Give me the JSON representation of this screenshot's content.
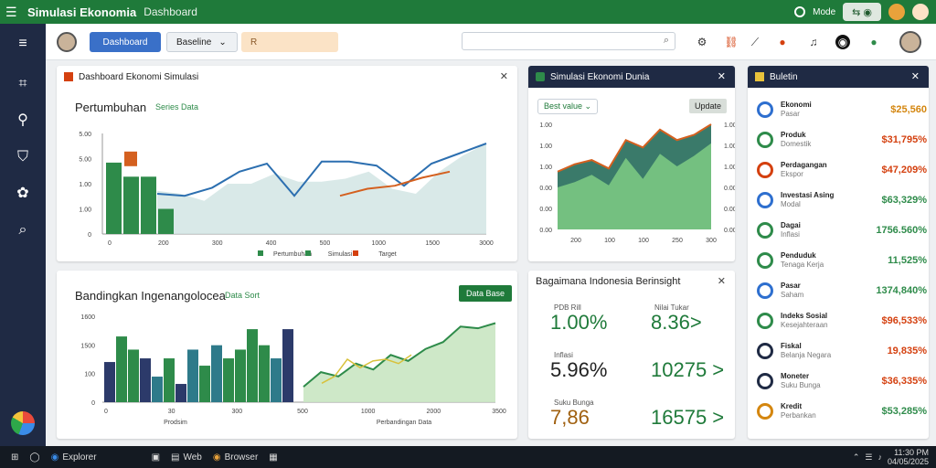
{
  "titlebar": {
    "app_title": "Simulasi Ekonomia",
    "subtitle": "Dashboard",
    "pill_label": "Mode"
  },
  "topbar": {
    "blue_button": "Dashboard",
    "select_label": "Baseline",
    "peach_label": "R",
    "search_placeholder": ""
  },
  "card1": {
    "header": "Dashboard Ekonomi Simulasi",
    "chart_title": "Pertumbuhan",
    "legend_inline": "Series Data",
    "chart_data": {
      "type": "line",
      "x_ticks": [
        "0",
        "200",
        "300",
        "400",
        "500",
        "1000",
        "1500",
        "3000"
      ],
      "y_ticks": [
        "5.00",
        "5.00",
        "1.00",
        "1.00",
        "0"
      ],
      "legend": [
        "Pertumbuhan",
        "Simulasi",
        "Target"
      ],
      "bars": [
        0.71,
        0.57,
        0.57,
        0.25
      ],
      "bar_colors": [
        "#2e8b4a",
        "#2e8b4a",
        "#2e8b4a",
        "#2e8b4a"
      ],
      "orange_bar": 0.82,
      "area_series": [
        0.43,
        0.4,
        0.33,
        0.5,
        0.5,
        0.6,
        0.52,
        0.52,
        0.55,
        0.62,
        0.45,
        0.4,
        0.62,
        0.78,
        0.9
      ],
      "line_blue": [
        0.4,
        0.38,
        0.46,
        0.62,
        0.7,
        0.38,
        0.72,
        0.72,
        0.68,
        0.48,
        0.7,
        0.8,
        0.9
      ],
      "line_orange": [
        0.38,
        0.45,
        0.48,
        0.56,
        0.62
      ]
    }
  },
  "card2": {
    "header": "Simulasi Ekonomi Dunia",
    "select_label": "Best value",
    "btn_label": "Update",
    "chart_data": {
      "type": "area",
      "y_ticks": [
        "1.00",
        "1.00",
        "1.00",
        "0.00",
        "0.00",
        "0.00"
      ],
      "x_ticks": [
        "200",
        "100",
        "100",
        "250",
        "300"
      ]
    }
  },
  "card3": {
    "header": "Buletin",
    "items": [
      {
        "name": "Ekonomi",
        "sub": "Pasar",
        "value": "$25,560",
        "icon_color": "#2e6fcf",
        "val_color": "#d4860f"
      },
      {
        "name": "Produk",
        "sub": "Domestik",
        "value": "$31,795%",
        "icon_color": "#2e8b4a",
        "val_color": "#d4400f"
      },
      {
        "name": "Perdagangan",
        "sub": "Ekspor",
        "value": "$47,209%",
        "icon_color": "#d4400f",
        "val_color": "#d4400f"
      },
      {
        "name": "Investasi Asing",
        "sub": "Modal",
        "value": "$63,329%",
        "icon_color": "#2e6fcf",
        "val_color": "#2e8b4a"
      },
      {
        "name": "Dagai",
        "sub": "Inflasi",
        "value": "1756.560%",
        "icon_color": "#2e8b4a",
        "val_color": "#2e8b4a"
      },
      {
        "name": "Penduduk",
        "sub": "Tenaga Kerja",
        "value": "11,525%",
        "icon_color": "#2e8b4a",
        "val_color": "#2e8b4a"
      },
      {
        "name": "Pasar",
        "sub": "Saham",
        "value": "1374,840%",
        "icon_color": "#2e6fcf",
        "val_color": "#2e8b4a"
      },
      {
        "name": "Indeks Sosial",
        "sub": "Kesejahteraan",
        "value": "$96,533%",
        "icon_color": "#2e8b4a",
        "val_color": "#d4400f"
      },
      {
        "name": "Fiskal",
        "sub": "Belanja Negara",
        "value": "19,835%",
        "icon_color": "#1f2a44",
        "val_color": "#d4400f"
      },
      {
        "name": "Moneter",
        "sub": "Suku Bunga",
        "value": "$36,335%",
        "icon_color": "#1f2a44",
        "val_color": "#d4400f"
      },
      {
        "name": "Kredit",
        "sub": "Perbankan",
        "value": "$53,285%",
        "icon_color": "#d4860f",
        "val_color": "#2e8b4a"
      }
    ]
  },
  "card4": {
    "header": "",
    "chart_title": "Bandingkan Ingenangolocea",
    "legend_inline": "Data Sort",
    "btn_label": "Data Base",
    "chart_data": {
      "type": "bar",
      "y_ticks": [
        "1600",
        "1500",
        "100",
        "0"
      ],
      "x_ticks": [
        "0",
        "30",
        "300",
        "500",
        "1000",
        "2000",
        "3500"
      ],
      "x_labels": [
        "Prodsim",
        "Perbandingan Data"
      ],
      "bars": [
        0.55,
        0.9,
        0.72,
        0.6,
        0.35,
        0.6,
        0.25,
        0.72,
        0.5,
        0.78,
        0.6,
        0.72,
        1.0,
        0.78,
        0.6,
        1.0
      ],
      "bar_colors": [
        "#2c3a6a",
        "#2e8b4a",
        "#2e8b4a",
        "#2c3a6a",
        "#2e7a8a",
        "#2e8b4a",
        "#2c3a6a",
        "#2e7a8a",
        "#2e8b4a",
        "#2e7a8a",
        "#2e8b4a",
        "#2e8b4a",
        "#2e8b4a",
        "#2e8b4a",
        "#2e7a8a",
        "#2c3a6a"
      ],
      "area_line": [
        0.18,
        0.35,
        0.3,
        0.45,
        0.38,
        0.55,
        0.48,
        0.62,
        0.7,
        0.88,
        0.86,
        0.92
      ],
      "line_yellow": [
        0.22,
        0.3,
        0.5,
        0.4,
        0.48,
        0.5,
        0.45,
        0.55
      ]
    }
  },
  "card5": {
    "header": "Bagaimana Indonesia Berinsight",
    "tiles": [
      {
        "value": "1.00%",
        "sub": "PDB Rill",
        "color": "#1f7a3a"
      },
      {
        "value": "8.36>",
        "sub": "Nilai Tukar",
        "color": "#1f7a3a"
      },
      {
        "value": "5.96%",
        "sub": "Inflasi",
        "color": "#222222"
      },
      {
        "value": "10275 >",
        "sub": "",
        "color": "#1f7a3a"
      },
      {
        "value": "7,86",
        "sub": "Suku Bunga",
        "color": "#a06010"
      },
      {
        "value": "16575 >",
        "sub": "",
        "color": "#1f7a3a"
      }
    ]
  },
  "taskbar": {
    "items": [
      "Explorer",
      "Files",
      "Web",
      "Browser",
      "Store"
    ],
    "time": "11:30 PM",
    "date": "04/05/2025"
  }
}
